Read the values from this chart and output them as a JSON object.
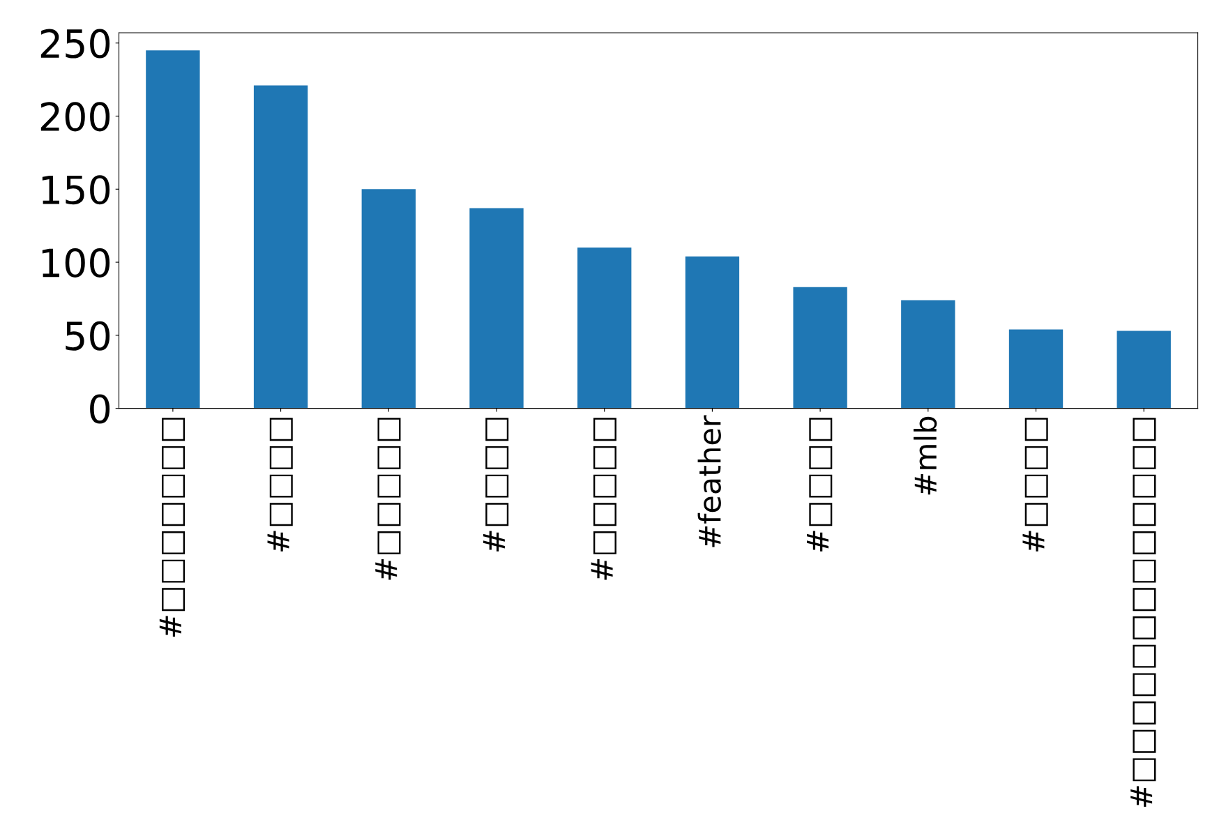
{
  "chart_data": {
    "type": "bar",
    "categories": [
      "#□□□□□□□",
      "#□□□□",
      "#□□□□□",
      "#□□□□",
      "#□□□□□",
      "#feather",
      "#□□□□",
      "#mlb",
      "#□□□□",
      "#□□□□□□□□□□□□□"
    ],
    "values": [
      245,
      221,
      150,
      137,
      110,
      104,
      83,
      74,
      54,
      53
    ],
    "color": "#1f77b4",
    "ylim": [
      0,
      257
    ],
    "yticks": [
      0,
      50,
      100,
      150,
      200,
      250
    ],
    "grid": false,
    "legend": false
  }
}
